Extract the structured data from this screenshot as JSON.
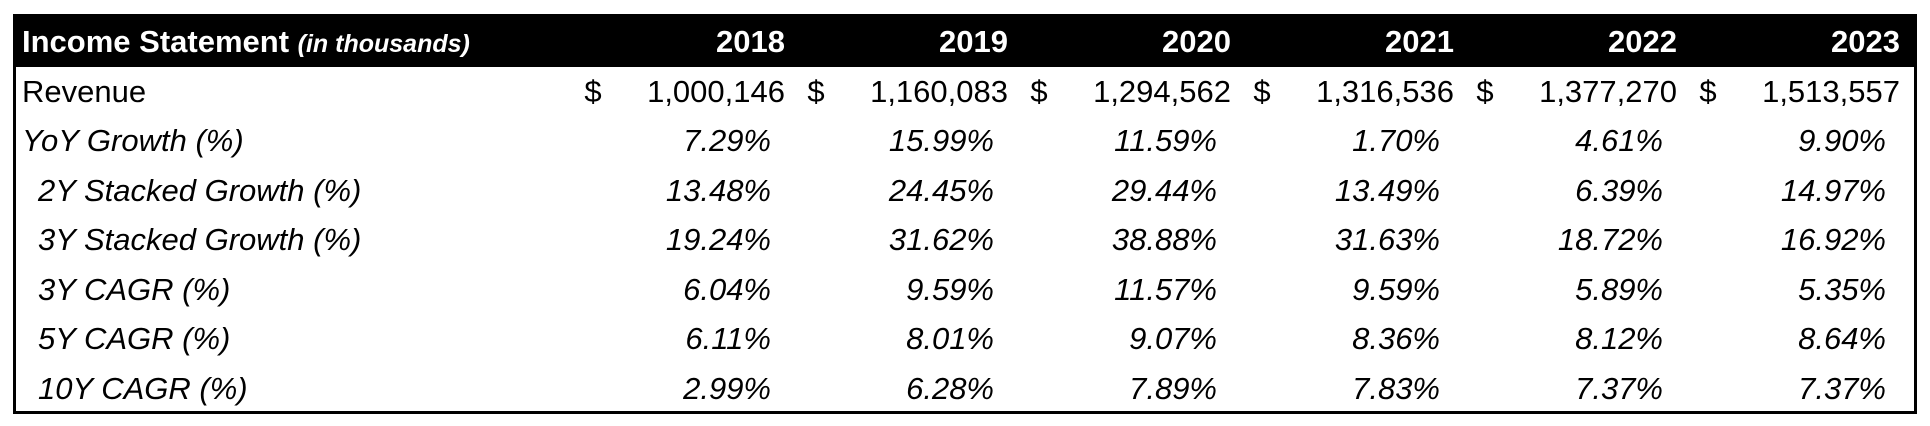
{
  "sheet": {
    "title": "Income Statement",
    "title_note": "(in thousands)",
    "years": [
      "2018",
      "2019",
      "2020",
      "2021",
      "2022",
      "2023"
    ],
    "currency_symbol": "$",
    "revenue": {
      "label": "Revenue",
      "values": [
        "1,000,146",
        "1,160,083",
        "1,294,562",
        "1,316,536",
        "1,377,270",
        "1,513,557"
      ]
    },
    "growth_rows": [
      {
        "label": "YoY Growth (%)",
        "indent": false,
        "values": [
          "7.29%",
          "15.99%",
          "11.59%",
          "1.70%",
          "4.61%",
          "9.90%"
        ]
      },
      {
        "label": "2Y Stacked Growth (%)",
        "indent": true,
        "values": [
          "13.48%",
          "24.45%",
          "29.44%",
          "13.49%",
          "6.39%",
          "14.97%"
        ]
      },
      {
        "label": "3Y Stacked Growth (%)",
        "indent": true,
        "values": [
          "19.24%",
          "31.62%",
          "38.88%",
          "31.63%",
          "18.72%",
          "16.92%"
        ]
      },
      {
        "label": "3Y CAGR (%)",
        "indent": true,
        "values": [
          "6.04%",
          "9.59%",
          "11.57%",
          "9.59%",
          "5.89%",
          "5.35%"
        ]
      },
      {
        "label": "5Y CAGR (%)",
        "indent": true,
        "values": [
          "6.11%",
          "8.01%",
          "9.07%",
          "8.36%",
          "8.12%",
          "8.64%"
        ]
      },
      {
        "label": "10Y CAGR (%)",
        "indent": true,
        "values": [
          "2.99%",
          "6.28%",
          "7.89%",
          "7.83%",
          "7.37%",
          "7.37%"
        ]
      }
    ]
  }
}
